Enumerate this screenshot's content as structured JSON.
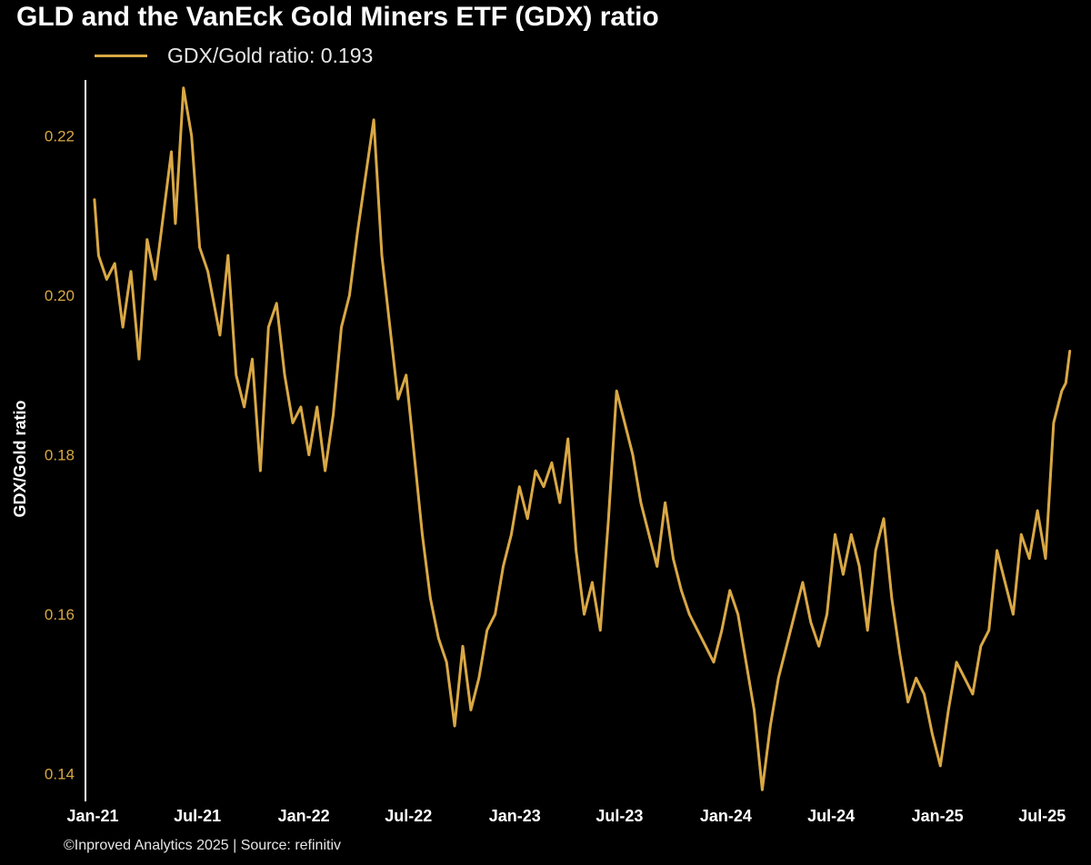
{
  "chart_data": {
    "type": "line",
    "title": "GLD and the VanEck Gold Miners ETF (GDX) ratio",
    "xlabel": "",
    "ylabel": "GDX/Gold ratio",
    "ylim": [
      0.137,
      0.227
    ],
    "xlim": [
      "2021-01-01",
      "2025-08-20"
    ],
    "grid": false,
    "legend_position": "top-left",
    "yticks": [
      "0.14",
      "0.16",
      "0.18",
      "0.20",
      "0.22"
    ],
    "ytick_values": [
      0.14,
      0.16,
      0.18,
      0.2,
      0.22
    ],
    "xticks": [
      "Jan-21",
      "Jul-21",
      "Jan-22",
      "Jul-22",
      "Jan-23",
      "Jul-23",
      "Jan-24",
      "Jul-24",
      "Jan-25",
      "Jul-25"
    ],
    "xtick_values": [
      "2021-01-01",
      "2021-07-01",
      "2022-01-01",
      "2022-07-01",
      "2023-01-01",
      "2023-07-01",
      "2024-01-01",
      "2024-07-01",
      "2025-01-01",
      "2025-07-01"
    ],
    "series": [
      {
        "name": "GDX/Gold ratio: 0.193",
        "color": "#d9a845",
        "x": [
          "2021-01-04",
          "2021-01-11",
          "2021-01-25",
          "2021-02-08",
          "2021-02-22",
          "2021-03-08",
          "2021-03-22",
          "2021-04-05",
          "2021-04-19",
          "2021-05-03",
          "2021-05-17",
          "2021-05-24",
          "2021-06-07",
          "2021-06-21",
          "2021-07-05",
          "2021-07-19",
          "2021-08-09",
          "2021-08-23",
          "2021-09-06",
          "2021-09-20",
          "2021-10-04",
          "2021-10-18",
          "2021-11-01",
          "2021-11-15",
          "2021-11-29",
          "2021-12-13",
          "2021-12-27",
          "2022-01-10",
          "2022-01-24",
          "2022-02-07",
          "2022-02-21",
          "2022-03-07",
          "2022-03-21",
          "2022-04-04",
          "2022-04-18",
          "2022-05-02",
          "2022-05-16",
          "2022-05-30",
          "2022-06-13",
          "2022-06-27",
          "2022-07-11",
          "2022-07-25",
          "2022-08-08",
          "2022-08-22",
          "2022-09-05",
          "2022-09-19",
          "2022-10-03",
          "2022-10-17",
          "2022-10-31",
          "2022-11-14",
          "2022-11-28",
          "2022-12-12",
          "2022-12-26",
          "2023-01-09",
          "2023-01-23",
          "2023-02-06",
          "2023-02-20",
          "2023-03-06",
          "2023-03-20",
          "2023-04-03",
          "2023-04-17",
          "2023-05-01",
          "2023-05-15",
          "2023-05-29",
          "2023-06-12",
          "2023-06-26",
          "2023-07-10",
          "2023-07-24",
          "2023-08-07",
          "2023-08-21",
          "2023-09-04",
          "2023-09-18",
          "2023-10-02",
          "2023-10-16",
          "2023-10-30",
          "2023-11-13",
          "2023-11-27",
          "2023-12-11",
          "2023-12-25",
          "2024-01-08",
          "2024-01-22",
          "2024-02-05",
          "2024-02-19",
          "2024-03-04",
          "2024-03-18",
          "2024-04-01",
          "2024-04-15",
          "2024-04-29",
          "2024-05-13",
          "2024-05-27",
          "2024-06-10",
          "2024-06-24",
          "2024-07-08",
          "2024-07-22",
          "2024-08-05",
          "2024-08-19",
          "2024-09-02",
          "2024-09-16",
          "2024-09-30",
          "2024-10-14",
          "2024-10-28",
          "2024-11-11",
          "2024-11-25",
          "2024-12-09",
          "2024-12-23",
          "2025-01-06",
          "2025-01-20",
          "2025-02-03",
          "2025-02-17",
          "2025-03-03",
          "2025-03-17",
          "2025-03-31",
          "2025-04-14",
          "2025-04-28",
          "2025-05-12",
          "2025-05-26",
          "2025-06-09",
          "2025-06-23",
          "2025-07-07",
          "2025-07-21",
          "2025-08-04",
          "2025-08-11",
          "2025-08-18"
        ],
        "values": [
          0.212,
          0.205,
          0.202,
          0.204,
          0.196,
          0.203,
          0.192,
          0.207,
          0.202,
          0.21,
          0.218,
          0.209,
          0.226,
          0.22,
          0.206,
          0.203,
          0.195,
          0.205,
          0.19,
          0.186,
          0.192,
          0.178,
          0.196,
          0.199,
          0.19,
          0.184,
          0.186,
          0.18,
          0.186,
          0.178,
          0.185,
          0.196,
          0.2,
          0.208,
          0.215,
          0.222,
          0.205,
          0.196,
          0.187,
          0.19,
          0.18,
          0.17,
          0.162,
          0.157,
          0.154,
          0.146,
          0.156,
          0.148,
          0.152,
          0.158,
          0.16,
          0.166,
          0.17,
          0.176,
          0.172,
          0.178,
          0.176,
          0.179,
          0.174,
          0.182,
          0.168,
          0.16,
          0.164,
          0.158,
          0.172,
          0.188,
          0.184,
          0.18,
          0.174,
          0.17,
          0.166,
          0.174,
          0.167,
          0.163,
          0.16,
          0.158,
          0.156,
          0.154,
          0.158,
          0.163,
          0.16,
          0.154,
          0.148,
          0.138,
          0.146,
          0.152,
          0.156,
          0.16,
          0.164,
          0.159,
          0.156,
          0.16,
          0.17,
          0.165,
          0.17,
          0.166,
          0.158,
          0.168,
          0.172,
          0.162,
          0.155,
          0.149,
          0.152,
          0.15,
          0.145,
          0.141,
          0.148,
          0.154,
          0.152,
          0.15,
          0.156,
          0.158,
          0.168,
          0.164,
          0.16,
          0.17,
          0.167,
          0.173,
          0.167,
          0.184,
          0.188,
          0.189,
          0.193
        ]
      }
    ],
    "annotations": [
      "©Inproved Analytics 2025 | Source: refinitiv"
    ]
  },
  "colors": {
    "background": "#000000",
    "series": "#d9a845",
    "ytick_text": "#d9a845",
    "text": "#ffffff",
    "axis": "#ffffff"
  }
}
